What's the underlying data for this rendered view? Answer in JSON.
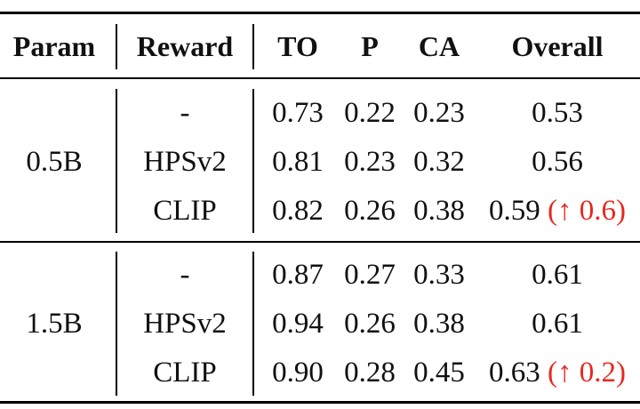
{
  "headers": {
    "param": "Param",
    "reward": "Reward",
    "to": "TO",
    "p": "P",
    "ca": "CA",
    "overall": "Overall"
  },
  "groups": [
    {
      "param": "0.5B",
      "rows": [
        {
          "reward": "-",
          "to": "0.73",
          "p": "0.22",
          "ca": "0.23",
          "overall": "0.53",
          "delta": ""
        },
        {
          "reward": "HPSv2",
          "to": "0.81",
          "p": "0.23",
          "ca": "0.32",
          "overall": "0.56",
          "delta": ""
        },
        {
          "reward": "CLIP",
          "to": "0.82",
          "p": "0.26",
          "ca": "0.38",
          "overall": "0.59",
          "delta": "(↑ 0.6)"
        }
      ]
    },
    {
      "param": "1.5B",
      "rows": [
        {
          "reward": "-",
          "to": "0.87",
          "p": "0.27",
          "ca": "0.33",
          "overall": "0.61",
          "delta": ""
        },
        {
          "reward": "HPSv2",
          "to": "0.94",
          "p": "0.26",
          "ca": "0.38",
          "overall": "0.61",
          "delta": ""
        },
        {
          "reward": "CLIP",
          "to": "0.90",
          "p": "0.28",
          "ca": "0.45",
          "overall": "0.63",
          "delta": "(↑ 0.2)"
        }
      ]
    }
  ],
  "colors": {
    "highlight": "#e8281e",
    "rule": "#000000"
  }
}
